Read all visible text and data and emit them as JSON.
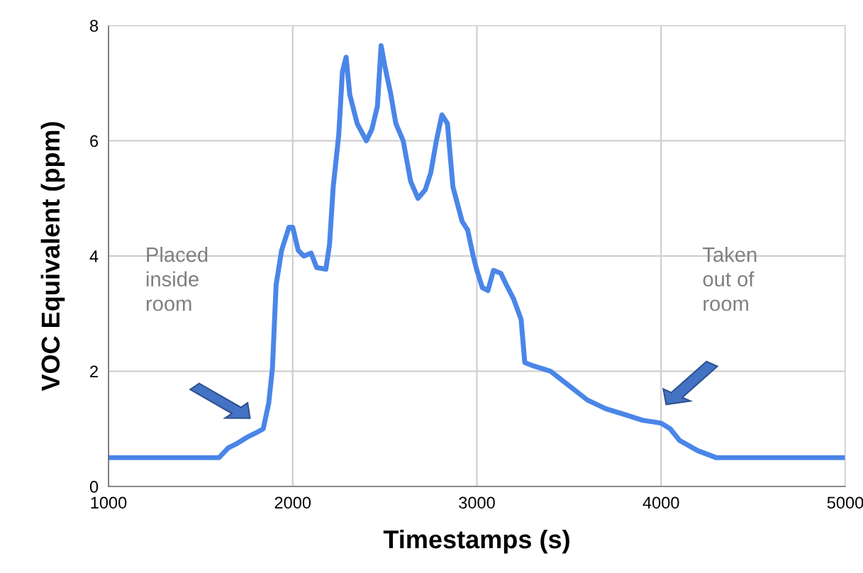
{
  "chart_data": {
    "type": "line",
    "xlabel": "Timestamps (s)",
    "ylabel": "VOC Equivalent (ppm)",
    "xlim": [
      1000,
      5000
    ],
    "xticks": [
      1000,
      2000,
      3000,
      4000,
      5000
    ],
    "ylim": [
      0,
      8
    ],
    "yticks": [
      0,
      2,
      4,
      6,
      8
    ],
    "grid": true,
    "series": [
      {
        "color": "#4a86e8",
        "x": [
          1000,
          1600,
          1650,
          1700,
          1750,
          1800,
          1840,
          1870,
          1890,
          1910,
          1940,
          1980,
          2000,
          2030,
          2060,
          2100,
          2130,
          2180,
          2200,
          2220,
          2250,
          2270,
          2290,
          2310,
          2350,
          2400,
          2430,
          2460,
          2480,
          2500,
          2530,
          2560,
          2600,
          2640,
          2680,
          2720,
          2750,
          2780,
          2810,
          2840,
          2870,
          2920,
          2950,
          2980,
          3000,
          3030,
          3060,
          3090,
          3130,
          3160,
          3200,
          3240,
          3260,
          3300,
          3400,
          3500,
          3600,
          3700,
          3800,
          3900,
          4000,
          4050,
          4100,
          4200,
          4300,
          5000
        ],
        "values": [
          0.5,
          0.5,
          0.67,
          0.75,
          0.85,
          0.93,
          1.0,
          1.45,
          2.05,
          3.5,
          4.1,
          4.5,
          4.5,
          4.1,
          4.0,
          4.05,
          3.8,
          3.77,
          4.2,
          5.2,
          6.1,
          7.2,
          7.45,
          6.8,
          6.3,
          6.0,
          6.2,
          6.6,
          7.65,
          7.3,
          6.85,
          6.3,
          6.0,
          5.3,
          5.0,
          5.15,
          5.45,
          6.0,
          6.45,
          6.3,
          5.2,
          4.6,
          4.45,
          4.0,
          3.75,
          3.45,
          3.4,
          3.75,
          3.7,
          3.5,
          3.25,
          2.9,
          2.15,
          2.1,
          2.0,
          1.75,
          1.5,
          1.35,
          1.25,
          1.15,
          1.1,
          1.0,
          0.8,
          0.62,
          0.5,
          0.5
        ]
      }
    ],
    "annotations": [
      "Placed\ninside\nroom",
      "Taken\nout of\nroom"
    ]
  }
}
